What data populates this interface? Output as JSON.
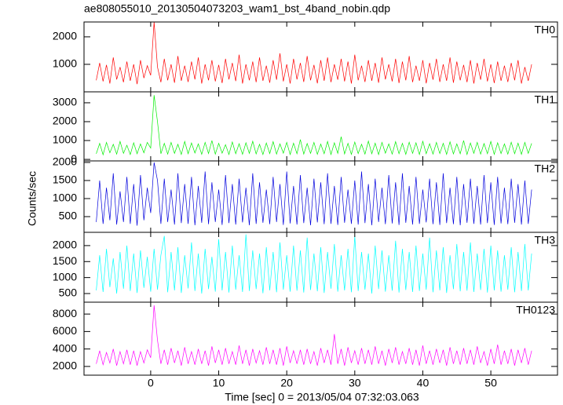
{
  "chart_data": {
    "type": "line",
    "title": "ae808055010_20130504073203_wam1_bst_4band_nobin.qdp",
    "ylabel": "Counts/sec",
    "xlabel": "Time [sec] 0 = 2013/05/04 07:32:03.063",
    "xlim": [
      -9.8,
      59.8
    ],
    "xticks": [
      0,
      10,
      20,
      30,
      40,
      50
    ],
    "x": [
      -8,
      -7.5,
      -7,
      -6.5,
      -6,
      -5.5,
      -5,
      -4.5,
      -4,
      -3.5,
      -3,
      -2.5,
      -2,
      -1.5,
      -1,
      -0.5,
      0,
      0.5,
      1,
      1.5,
      2,
      2.5,
      3,
      3.5,
      4,
      4.5,
      5,
      5.5,
      6,
      6.5,
      7,
      7.5,
      8,
      8.5,
      9,
      9.5,
      10,
      10.5,
      11,
      11.5,
      12,
      12.5,
      13,
      13.5,
      14,
      14.5,
      15,
      15.5,
      16,
      16.5,
      17,
      17.5,
      18,
      18.5,
      19,
      19.5,
      20,
      20.5,
      21,
      21.5,
      22,
      22.5,
      23,
      23.5,
      24,
      24.5,
      25,
      25.5,
      26,
      26.5,
      27,
      27.5,
      28,
      28.5,
      29,
      29.5,
      30,
      30.5,
      31,
      31.5,
      32,
      32.5,
      33,
      33.5,
      34,
      34.5,
      35,
      35.5,
      36,
      36.5,
      37,
      37.5,
      38,
      38.5,
      39,
      39.5,
      40,
      40.5,
      41,
      41.5,
      42,
      42.5,
      43,
      43.5,
      44,
      44.5,
      45,
      45.5,
      46,
      46.5,
      47,
      47.5,
      48,
      48.5,
      49,
      49.5,
      50,
      50.5,
      51,
      51.5,
      52,
      52.5,
      53,
      53.5,
      54,
      54.5,
      55,
      55.5,
      56
    ],
    "series": [
      {
        "name": "TH0",
        "color": "#ff0000",
        "ylim": [
          0,
          2540
        ],
        "yticks": [
          1000,
          2000
        ],
        "values": [
          420,
          1050,
          380,
          980,
          300,
          1250,
          450,
          900,
          350,
          1100,
          400,
          1000,
          280,
          1150,
          500,
          950,
          600,
          2540,
          900,
          350,
          1200,
          420,
          1000,
          330,
          1300,
          400,
          950,
          360,
          1100,
          450,
          1250,
          300,
          1000,
          420,
          1150,
          380,
          980,
          320,
          1200,
          450,
          1050,
          390,
          1350,
          300,
          1000,
          420,
          1100,
          350,
          1250,
          400,
          950,
          330,
          1150,
          440,
          1400,
          380,
          1000,
          300,
          1200,
          450,
          1050,
          360,
          1300,
          420,
          980,
          310,
          1150,
          400,
          1250,
          350,
          1000,
          440,
          1200,
          380,
          1100,
          300,
          1350,
          420,
          950,
          360,
          1150,
          400,
          1050,
          330,
          1250,
          450,
          1000,
          380,
          1200,
          320,
          1100,
          420,
          1300,
          350,
          950,
          400,
          1150,
          310,
          1050,
          440,
          1200,
          360,
          1000,
          400,
          1250,
          330,
          1100,
          420,
          980,
          350,
          1150,
          300,
          1050,
          440,
          1200,
          380,
          1000,
          320,
          1100,
          400,
          950,
          360,
          1050,
          420,
          1150,
          300,
          900,
          400,
          1000
        ]
      },
      {
        "name": "TH1",
        "color": "#00ee00",
        "ylim": [
          -80,
          3580
        ],
        "yticks": [
          0,
          1000,
          2000,
          3000
        ],
        "values": [
          300,
          850,
          250,
          900,
          350,
          800,
          280,
          950,
          320,
          750,
          260,
          880,
          300,
          820,
          350,
          900,
          600,
          3400,
          2000,
          300,
          850,
          280,
          900,
          320,
          800,
          260,
          950,
          300,
          870,
          340,
          820,
          270,
          900,
          310,
          1000,
          280,
          850,
          330,
          780,
          260,
          920,
          300,
          830,
          270,
          880,
          320,
          960,
          290,
          800,
          260,
          870,
          310,
          940,
          280,
          820,
          330,
          900,
          260,
          860,
          300,
          1050,
          280,
          840,
          320,
          900,
          270,
          810,
          300,
          950,
          260,
          880,
          320,
          1200,
          290,
          850,
          270,
          920,
          310,
          800,
          280,
          970,
          300,
          860,
          260,
          900,
          330,
          820,
          280,
          940,
          300,
          850,
          270,
          910,
          320,
          880,
          260,
          960,
          300,
          830,
          280,
          900,
          310,
          850,
          270,
          930,
          290,
          820,
          300,
          1000,
          260,
          870,
          320,
          900,
          280,
          840,
          300,
          950,
          270,
          880,
          310,
          820,
          280,
          910,
          300,
          860,
          270,
          900,
          320,
          850
        ]
      },
      {
        "name": "TH2",
        "color": "#0000dd",
        "ylim": [
          65,
          2043
        ],
        "yticks": [
          500,
          1000,
          1500,
          2000
        ],
        "values": [
          350,
          1500,
          300,
          1300,
          400,
          1700,
          280,
          1200,
          350,
          1600,
          300,
          1400,
          250,
          1650,
          400,
          1300,
          600,
          2000,
          1500,
          300,
          1550,
          350,
          1250,
          280,
          1700,
          320,
          1400,
          300,
          1600,
          260,
          1350,
          330,
          1750,
          290,
          1450,
          350,
          1250,
          270,
          1650,
          320,
          1400,
          280,
          1550,
          340,
          1300,
          260,
          1700,
          300,
          1450,
          330,
          1250,
          290,
          1600,
          350,
          1400,
          270,
          1750,
          310,
          1350,
          280,
          1650,
          320,
          1300,
          260,
          1550,
          340,
          1450,
          290,
          1700,
          300,
          1350,
          270,
          1600,
          330,
          1250,
          300,
          1500,
          280,
          1750,
          320,
          1400,
          260,
          1550,
          350,
          1300,
          290,
          1650,
          310,
          1450,
          270,
          1700,
          330,
          1350,
          280,
          1600,
          300,
          1250,
          340,
          1550,
          290,
          1450,
          270,
          1700,
          320,
          1300,
          290,
          1600,
          260,
          1400,
          330,
          1550,
          300,
          1350,
          280,
          1650,
          320,
          1450,
          270,
          1600,
          310,
          1300,
          290,
          1550,
          330,
          1400,
          280,
          1500,
          300,
          1250
        ]
      },
      {
        "name": "TH3",
        "color": "#00ffff",
        "ylim": [
          230,
          2415
        ],
        "yticks": [
          500,
          1000,
          1500,
          2000
        ],
        "values": [
          600,
          1700,
          550,
          1900,
          700,
          1600,
          500,
          1800,
          650,
          2000,
          580,
          1750,
          520,
          1850,
          680,
          1650,
          560,
          1900,
          620,
          1700,
          2300,
          540,
          1800,
          600,
          1950,
          520,
          1700,
          660,
          2100,
          580,
          1750,
          500,
          1900,
          640,
          1650,
          560,
          2200,
          600,
          1800,
          530,
          2000,
          620,
          1700,
          550,
          2350,
          580,
          1850,
          640,
          1750,
          510,
          1950,
          600,
          1800,
          540,
          2100,
          620,
          1700,
          560,
          2000,
          590,
          1850,
          530,
          2250,
          610,
          1750,
          570,
          1950,
          520,
          1800,
          650,
          2050,
          560,
          1700,
          600,
          1900,
          540,
          2300,
          580,
          1800,
          620,
          1750,
          500,
          2000,
          640,
          1850,
          560,
          1700,
          590,
          2150,
          530,
          1900,
          610,
          1800,
          550,
          2000,
          580,
          1750,
          620,
          2250,
          540,
          1850,
          600,
          1950,
          520,
          1700,
          640,
          2050,
          570,
          1800,
          590,
          2100,
          550,
          1750,
          610,
          1900,
          530,
          2000,
          600,
          1850,
          560,
          1700,
          620,
          1950,
          540,
          1800,
          580,
          2050,
          600,
          1750
        ]
      },
      {
        "name": "TH0123",
        "color": "#ff00ff",
        "ylim": [
          1000,
          9360
        ],
        "yticks": [
          2000,
          4000,
          6000,
          8000
        ],
        "values": [
          2300,
          3800,
          2200,
          3600,
          2400,
          4000,
          2100,
          3700,
          2300,
          3900,
          2200,
          3800,
          2100,
          3700,
          2400,
          3900,
          3000,
          9000,
          5000,
          2300,
          3900,
          2200,
          4100,
          2400,
          3800,
          2100,
          4200,
          2300,
          3700,
          2200,
          4000,
          2300,
          3800,
          2100,
          4300,
          2400,
          3900,
          2200,
          4100,
          2300,
          3700,
          2200,
          4400,
          2300,
          3900,
          2100,
          4000,
          2400,
          3800,
          2200,
          4200,
          2300,
          3900,
          2200,
          4100,
          2100,
          4300,
          2400,
          3800,
          2300,
          3900,
          2200,
          4000,
          2300,
          3700,
          2100,
          4100,
          2400,
          3900,
          2200,
          5700,
          2300,
          4000,
          2100,
          4200,
          2400,
          3800,
          2200,
          4100,
          2300,
          3900,
          2200,
          4300,
          2300,
          3800,
          2100,
          4000,
          2400,
          4200,
          2200,
          3700,
          2300,
          4100,
          2200,
          3900,
          2100,
          4400,
          2300,
          3800,
          2200,
          4000,
          2400,
          3900,
          2100,
          4200,
          2300,
          3800,
          2200,
          4100,
          2300,
          3900,
          2200,
          4300,
          2400,
          3700,
          2100,
          4000,
          2300,
          4500,
          2200,
          3800,
          2300,
          4000,
          2100,
          3900,
          2400,
          4100,
          2200,
          3800
        ]
      }
    ]
  }
}
